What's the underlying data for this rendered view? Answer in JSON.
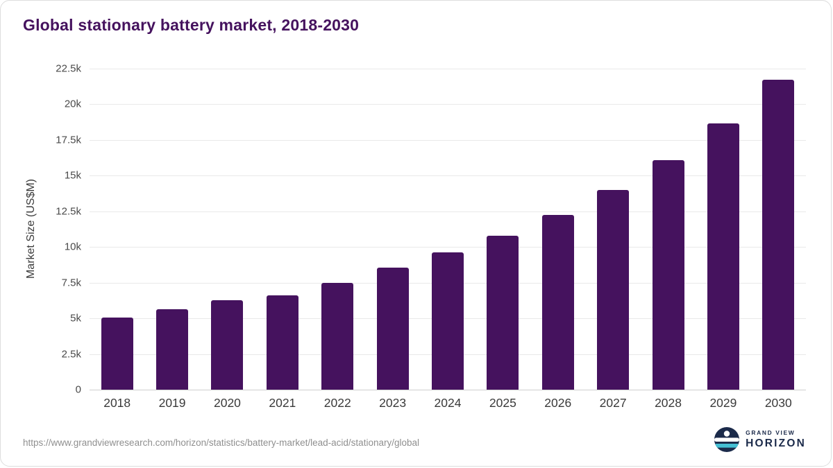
{
  "page": {
    "title": "Global stationary battery market, 2018-2030",
    "source_url": "https://www.grandviewresearch.com/horizon/statistics/battery-market/lead-acid/stationary/global"
  },
  "logo": {
    "icon": "horizon-circle-icon",
    "top": "GRAND VIEW",
    "bottom": "HORIZON"
  },
  "colors": {
    "bar": "#45125e",
    "title": "#45125e",
    "grid": "#e9e9e9",
    "axis_line": "#cfcfcf",
    "logo_navy": "#1b2a4a",
    "logo_teal": "#45bfd3"
  },
  "chart_data": {
    "type": "bar",
    "title": "Global stationary battery market, 2018-2030",
    "xlabel": "",
    "ylabel": "Market Size (US$M)",
    "categories": [
      "2018",
      "2019",
      "2020",
      "2021",
      "2022",
      "2023",
      "2024",
      "2025",
      "2026",
      "2027",
      "2028",
      "2029",
      "2030"
    ],
    "values": [
      5050,
      5650,
      6250,
      6600,
      7500,
      8550,
      9600,
      10800,
      12250,
      14000,
      16100,
      18650,
      21700
    ],
    "ylim": [
      0,
      22500
    ],
    "yticks": [
      0,
      2500,
      5000,
      7500,
      10000,
      12500,
      15000,
      17500,
      20000,
      22500
    ],
    "ytick_labels": [
      "0",
      "2.5k",
      "5k",
      "7.5k",
      "10k",
      "12.5k",
      "15k",
      "17.5k",
      "20k",
      "22.5k"
    ],
    "grid": true,
    "legend": "none",
    "bar_color": "#45125e"
  }
}
